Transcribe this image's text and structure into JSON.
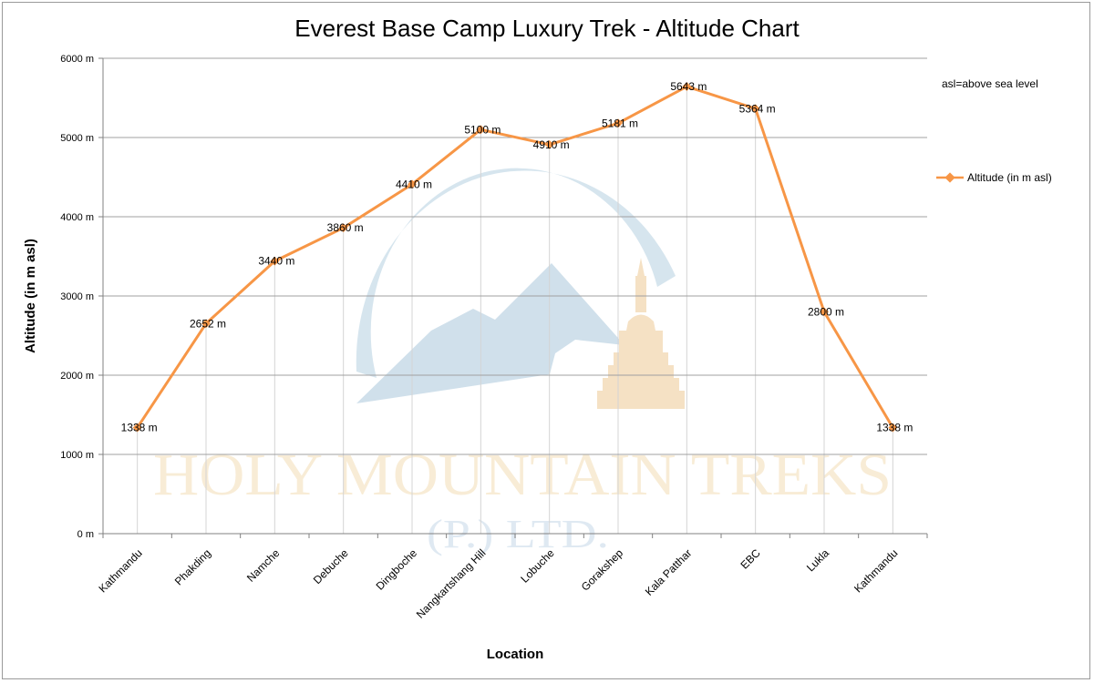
{
  "chart_data": {
    "type": "line",
    "title": "Everest Base Camp Luxury Trek - Altitude Chart",
    "xlabel": "Location",
    "ylabel": "Altitude (in m asl)",
    "categories": [
      "Kathmandu",
      "Phakding",
      "Namche",
      "Debuche",
      "Dingboche",
      "Nangkartshang Hill",
      "Lobuche",
      "Gorakshep",
      "Kala Patthar",
      "EBC",
      "Lukla",
      "Kathmandu"
    ],
    "series": [
      {
        "name": "Altitude (in  m asl)",
        "values": [
          1338,
          2652,
          3440,
          3860,
          4410,
          5100,
          4910,
          5181,
          5643,
          5364,
          2800,
          1338
        ],
        "data_labels": [
          "1338 m",
          "2652 m",
          "3440 m",
          "3860 m",
          "4410 m",
          "5100 m",
          "4910 m",
          "5181 m",
          "5643 m",
          "5364 m",
          "2800 m",
          "1338 m"
        ],
        "color": "#f79646"
      }
    ],
    "ylim": [
      0,
      6000
    ],
    "yticks": [
      0,
      1000,
      2000,
      3000,
      4000,
      5000,
      6000
    ],
    "ytick_labels": [
      "0 m",
      "1000 m",
      "2000 m",
      "3000 m",
      "4000 m",
      "5000 m",
      "6000 m"
    ],
    "grid": true,
    "legend_position": "right",
    "annotation": "asl=above sea level"
  },
  "watermark": {
    "line1": "HOLY MOUNTAIN TREKS",
    "line2": "(P.) LTD.",
    "colors": {
      "text": "#f8ecd6",
      "line2": "#dfe9f2",
      "arc": "#d6e5ee",
      "mountain": "#d0e0eb",
      "stupa": "#f5e1c4"
    }
  },
  "colors": {
    "grid": "#a0a0a0",
    "vgrid": "#d4d4d4",
    "axis": "#808080"
  }
}
